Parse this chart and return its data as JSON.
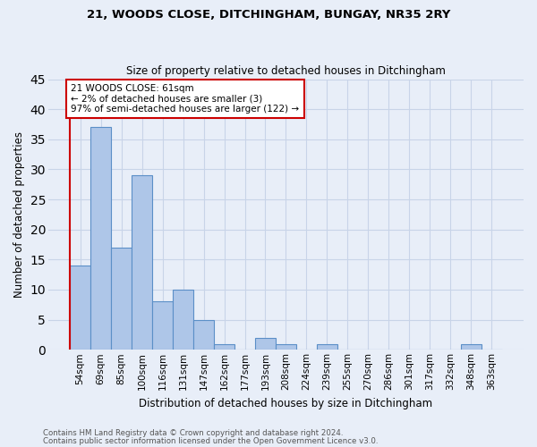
{
  "title_line1": "21, WOODS CLOSE, DITCHINGHAM, BUNGAY, NR35 2RY",
  "title_line2": "Size of property relative to detached houses in Ditchingham",
  "xlabel": "Distribution of detached houses by size in Ditchingham",
  "ylabel": "Number of detached properties",
  "footer_line1": "Contains HM Land Registry data © Crown copyright and database right 2024.",
  "footer_line2": "Contains public sector information licensed under the Open Government Licence v3.0.",
  "categories": [
    "54sqm",
    "69sqm",
    "85sqm",
    "100sqm",
    "116sqm",
    "131sqm",
    "147sqm",
    "162sqm",
    "177sqm",
    "193sqm",
    "208sqm",
    "224sqm",
    "239sqm",
    "255sqm",
    "270sqm",
    "286sqm",
    "301sqm",
    "317sqm",
    "332sqm",
    "348sqm",
    "363sqm"
  ],
  "values": [
    14,
    37,
    17,
    29,
    8,
    10,
    5,
    1,
    0,
    2,
    1,
    0,
    1,
    0,
    0,
    0,
    0,
    0,
    0,
    1,
    0
  ],
  "bar_color": "#aec6e8",
  "bar_edge_color": "#5b8fc7",
  "ylim": [
    0,
    45
  ],
  "yticks": [
    0,
    5,
    10,
    15,
    20,
    25,
    30,
    35,
    40,
    45
  ],
  "annotation_text": "21 WOODS CLOSE: 61sqm\n← 2% of detached houses are smaller (3)\n97% of semi-detached houses are larger (122) →",
  "annotation_box_color": "#ffffff",
  "annotation_border_color": "#cc0000",
  "subject_line_color": "#cc0000",
  "grid_color": "#c8d4e8",
  "bg_color": "#e8eef8"
}
